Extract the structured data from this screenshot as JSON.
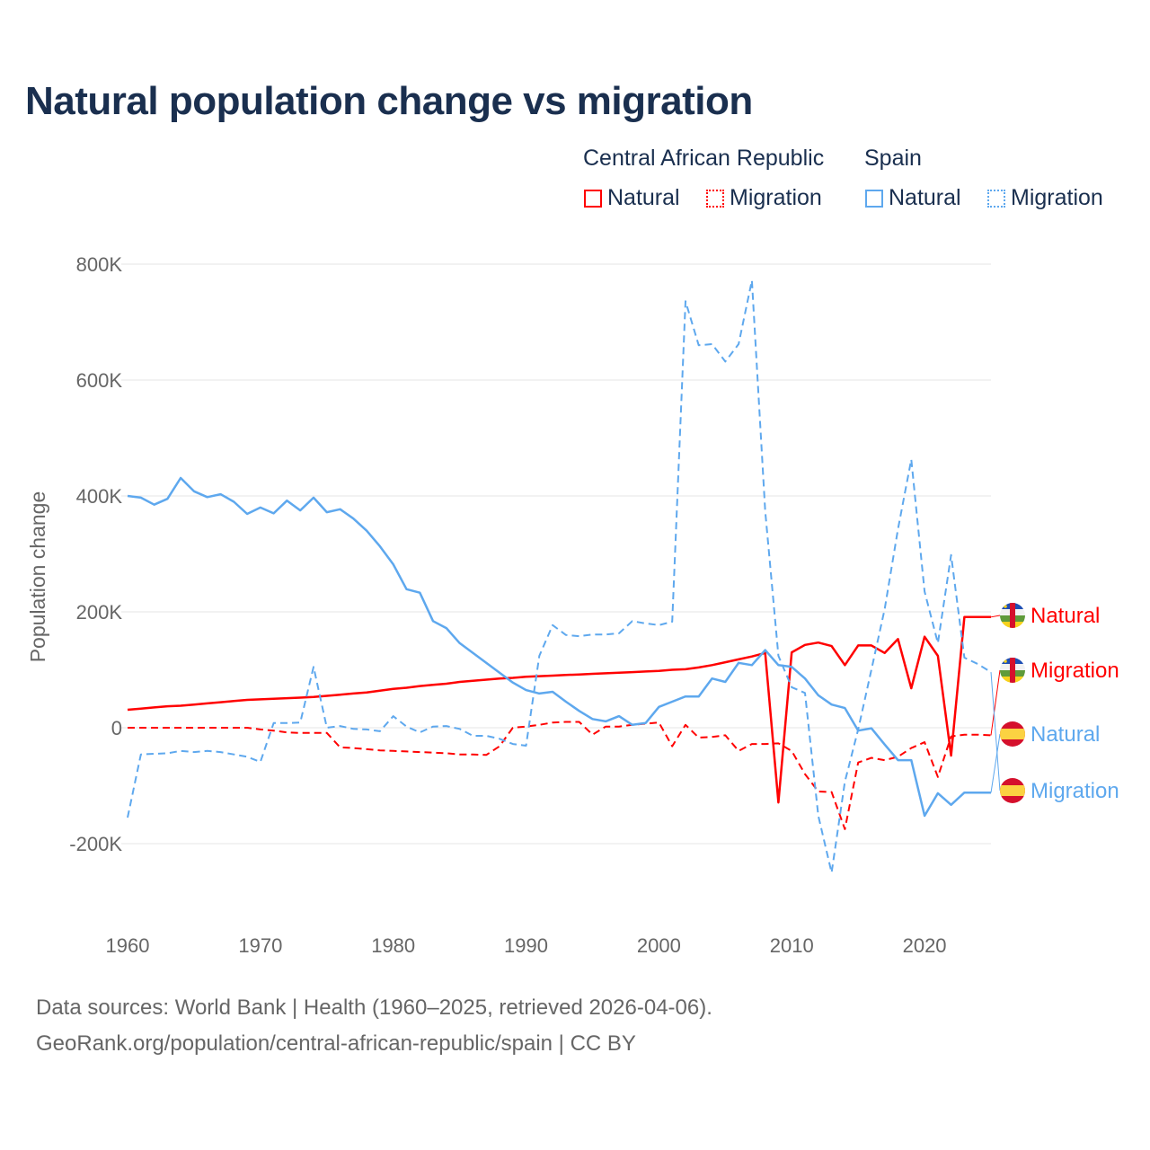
{
  "title": "Natural population change vs migration",
  "legend": {
    "groups": [
      {
        "name": "Central African Republic",
        "items": [
          "Natural",
          "Migration"
        ],
        "color": "#ff0000"
      },
      {
        "name": "Spain",
        "items": [
          "Natural",
          "Migration"
        ],
        "color": "#5ea8ee"
      }
    ]
  },
  "footer": {
    "line1": "Data sources: World Bank | Health (1960–2025, retrieved 2026-04-06).",
    "line2": "GeoRank.org/population/central-african-republic/spain | CC BY"
  },
  "chart_data": {
    "type": "line",
    "title": "Natural population change vs migration",
    "ylabel": "Population change",
    "xlabel": "",
    "xlim": [
      1960,
      2025
    ],
    "ylim": [
      -300000,
      820000
    ],
    "x_ticks": [
      1960,
      1970,
      1980,
      1990,
      2000,
      2010,
      2020
    ],
    "x_tick_labels": [
      "1960",
      "1970",
      "1980",
      "1990",
      "2000",
      "2010",
      "2020"
    ],
    "y_ticks": [
      -200000,
      0,
      200000,
      400000,
      600000,
      800000
    ],
    "y_tick_labels": [
      "-200K",
      "0",
      "200K",
      "400K",
      "600K",
      "800K"
    ],
    "grid": true,
    "x_start": 1960,
    "series": [
      {
        "name": "Central African Republic Natural",
        "end_label": "Natural",
        "flag": "car",
        "color": "#ff0000",
        "dash": false,
        "values_k": [
          31,
          33,
          35,
          37,
          38,
          40,
          42,
          44,
          46,
          48,
          49,
          50,
          51,
          52,
          53,
          55,
          57,
          59,
          61,
          64,
          67,
          69,
          72,
          74,
          76,
          79,
          81,
          83,
          85,
          86,
          88,
          89,
          90,
          91,
          92,
          93,
          94,
          95,
          96,
          97,
          98,
          100,
          101,
          104,
          108,
          113,
          118,
          123,
          129,
          -129,
          130,
          143,
          147,
          141,
          108,
          142,
          142,
          129,
          153,
          68,
          157,
          124,
          -48,
          191,
          191,
          191
        ]
      },
      {
        "name": "Central African Republic Migration",
        "end_label": "Migration",
        "flag": "car",
        "color": "#ff0000",
        "dash": true,
        "values_k": [
          0,
          0,
          0,
          0,
          0,
          0,
          0,
          0,
          0,
          0,
          -3,
          -5,
          -8,
          -9,
          -9,
          -9,
          -34,
          -35,
          -37,
          -39,
          -40,
          -41,
          -42,
          -43,
          -44,
          -46,
          -46,
          -47,
          -32,
          0,
          2,
          5,
          9,
          10,
          10,
          -12,
          2,
          2,
          5,
          7,
          9,
          -32,
          5,
          -17,
          -16,
          -13,
          -40,
          -28,
          -28,
          -27,
          -40,
          -80,
          -110,
          -111,
          -175,
          -60,
          -52,
          -56,
          -50,
          -35,
          -25,
          -85,
          -15,
          -12,
          -12,
          -13
        ]
      },
      {
        "name": "Spain Natural",
        "end_label": "Natural",
        "flag": "spain",
        "color": "#5ea8ee",
        "dash": false,
        "values_k": [
          400,
          397,
          385,
          395,
          431,
          408,
          398,
          403,
          390,
          369,
          380,
          370,
          392,
          375,
          397,
          372,
          377,
          361,
          340,
          313,
          282,
          239,
          233,
          184,
          172,
          146,
          129,
          112,
          95,
          78,
          65,
          59,
          62,
          45,
          29,
          15,
          11,
          20,
          5,
          8,
          36,
          45,
          54,
          54,
          85,
          79,
          112,
          108,
          134,
          108,
          105,
          85,
          56,
          40,
          34,
          -5,
          -1,
          -29,
          -56,
          -56,
          -152,
          -113,
          -133,
          -112,
          -112,
          -112
        ]
      },
      {
        "name": "Spain Migration",
        "end_label": "Migration",
        "flag": "spain",
        "color": "#5ea8ee",
        "dash": true,
        "values_k": [
          -155,
          -46,
          -45,
          -44,
          -40,
          -42,
          -40,
          -42,
          -46,
          -50,
          -59,
          8,
          8,
          9,
          105,
          0,
          3,
          -2,
          -3,
          -6,
          20,
          2,
          -8,
          2,
          3,
          -2,
          -14,
          -14,
          -19,
          -28,
          -31,
          124,
          177,
          160,
          158,
          161,
          161,
          163,
          184,
          180,
          177,
          183,
          736,
          660,
          662,
          632,
          662,
          772,
          374,
          124,
          70,
          60,
          -152,
          -250,
          -93,
          -3,
          100,
          205,
          343,
          463,
          235,
          146,
          298,
          121,
          110,
          96
        ]
      }
    ]
  }
}
